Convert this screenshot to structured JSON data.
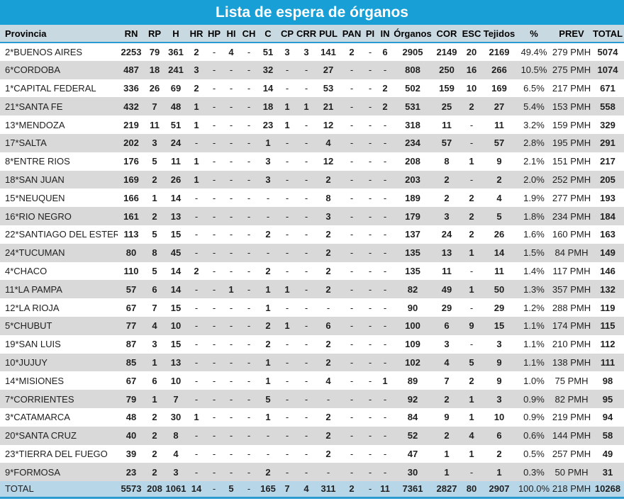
{
  "title": "Lista de espera de órganos",
  "colors": {
    "title_bar": "#18a0d6",
    "header_bg": "#c9d9e2",
    "row_alt_bg": "#d9d9d9",
    "total_row_bg": "#b7d7e9",
    "accent_border": "#2a9ad0",
    "text": "#1f1f1f",
    "title_text": "#ffffff"
  },
  "chart_data": {
    "type": "table",
    "title": "Lista de espera de órganos",
    "columns": [
      "Provincia",
      "RN",
      "RP",
      "H",
      "HR",
      "HP",
      "HI",
      "CH",
      "C",
      "CP",
      "CRR",
      "PUL",
      "PAN",
      "PI",
      "IN",
      "Órganos",
      "COR",
      "ESC",
      "Tejidos",
      "%",
      "PREV",
      "TOTAL"
    ],
    "rows": [
      [
        "2*BUENOS AIRES",
        "2253",
        "79",
        "361",
        "2",
        "-",
        "4",
        "-",
        "51",
        "3",
        "3",
        "141",
        "2",
        "-",
        "6",
        "2905",
        "2149",
        "20",
        "2169",
        "49.4%",
        "279 PMH",
        "5074"
      ],
      [
        "6*CORDOBA",
        "487",
        "18",
        "241",
        "3",
        "-",
        "-",
        "-",
        "32",
        "-",
        "-",
        "27",
        "-",
        "-",
        "-",
        "808",
        "250",
        "16",
        "266",
        "10.5%",
        "275 PMH",
        "1074"
      ],
      [
        "1*CAPITAL FEDERAL",
        "336",
        "26",
        "69",
        "2",
        "-",
        "-",
        "-",
        "14",
        "-",
        "-",
        "53",
        "-",
        "-",
        "2",
        "502",
        "159",
        "10",
        "169",
        "6.5%",
        "217 PMH",
        "671"
      ],
      [
        "21*SANTA FE",
        "432",
        "7",
        "48",
        "1",
        "-",
        "-",
        "-",
        "18",
        "1",
        "1",
        "21",
        "-",
        "-",
        "2",
        "531",
        "25",
        "2",
        "27",
        "5.4%",
        "153 PMH",
        "558"
      ],
      [
        "13*MENDOZA",
        "219",
        "11",
        "51",
        "1",
        "-",
        "-",
        "-",
        "23",
        "1",
        "-",
        "12",
        "-",
        "-",
        "-",
        "318",
        "11",
        "-",
        "11",
        "3.2%",
        "159 PMH",
        "329"
      ],
      [
        "17*SALTA",
        "202",
        "3",
        "24",
        "-",
        "-",
        "-",
        "-",
        "1",
        "-",
        "-",
        "4",
        "-",
        "-",
        "-",
        "234",
        "57",
        "-",
        "57",
        "2.8%",
        "195 PMH",
        "291"
      ],
      [
        "8*ENTRE RIOS",
        "176",
        "5",
        "11",
        "1",
        "-",
        "-",
        "-",
        "3",
        "-",
        "-",
        "12",
        "-",
        "-",
        "-",
        "208",
        "8",
        "1",
        "9",
        "2.1%",
        "151 PMH",
        "217"
      ],
      [
        "18*SAN JUAN",
        "169",
        "2",
        "26",
        "1",
        "-",
        "-",
        "-",
        "3",
        "-",
        "-",
        "2",
        "-",
        "-",
        "-",
        "203",
        "2",
        "-",
        "2",
        "2.0%",
        "252 PMH",
        "205"
      ],
      [
        "15*NEUQUEN",
        "166",
        "1",
        "14",
        "-",
        "-",
        "-",
        "-",
        "-",
        "-",
        "-",
        "8",
        "-",
        "-",
        "-",
        "189",
        "2",
        "2",
        "4",
        "1.9%",
        "277 PMH",
        "193"
      ],
      [
        "16*RIO NEGRO",
        "161",
        "2",
        "13",
        "-",
        "-",
        "-",
        "-",
        "-",
        "-",
        "-",
        "3",
        "-",
        "-",
        "-",
        "179",
        "3",
        "2",
        "5",
        "1.8%",
        "234 PMH",
        "184"
      ],
      [
        "22*SANTIAGO DEL ESTERO",
        "113",
        "5",
        "15",
        "-",
        "-",
        "-",
        "-",
        "2",
        "-",
        "-",
        "2",
        "-",
        "-",
        "-",
        "137",
        "24",
        "2",
        "26",
        "1.6%",
        "160 PMH",
        "163"
      ],
      [
        "24*TUCUMAN",
        "80",
        "8",
        "45",
        "-",
        "-",
        "-",
        "-",
        "-",
        "-",
        "-",
        "2",
        "-",
        "-",
        "-",
        "135",
        "13",
        "1",
        "14",
        "1.5%",
        "84 PMH",
        "149"
      ],
      [
        "4*CHACO",
        "110",
        "5",
        "14",
        "2",
        "-",
        "-",
        "-",
        "2",
        "-",
        "-",
        "2",
        "-",
        "-",
        "-",
        "135",
        "11",
        "-",
        "11",
        "1.4%",
        "117 PMH",
        "146"
      ],
      [
        "11*LA PAMPA",
        "57",
        "6",
        "14",
        "-",
        "-",
        "1",
        "-",
        "1",
        "1",
        "-",
        "2",
        "-",
        "-",
        "-",
        "82",
        "49",
        "1",
        "50",
        "1.3%",
        "357 PMH",
        "132"
      ],
      [
        "12*LA RIOJA",
        "67",
        "7",
        "15",
        "-",
        "-",
        "-",
        "-",
        "1",
        "-",
        "-",
        "-",
        "-",
        "-",
        "-",
        "90",
        "29",
        "-",
        "29",
        "1.2%",
        "288 PMH",
        "119"
      ],
      [
        "5*CHUBUT",
        "77",
        "4",
        "10",
        "-",
        "-",
        "-",
        "-",
        "2",
        "1",
        "-",
        "6",
        "-",
        "-",
        "-",
        "100",
        "6",
        "9",
        "15",
        "1.1%",
        "174 PMH",
        "115"
      ],
      [
        "19*SAN LUIS",
        "87",
        "3",
        "15",
        "-",
        "-",
        "-",
        "-",
        "2",
        "-",
        "-",
        "2",
        "-",
        "-",
        "-",
        "109",
        "3",
        "-",
        "3",
        "1.1%",
        "210 PMH",
        "112"
      ],
      [
        "10*JUJUY",
        "85",
        "1",
        "13",
        "-",
        "-",
        "-",
        "-",
        "1",
        "-",
        "-",
        "2",
        "-",
        "-",
        "-",
        "102",
        "4",
        "5",
        "9",
        "1.1%",
        "138 PMH",
        "111"
      ],
      [
        "14*MISIONES",
        "67",
        "6",
        "10",
        "-",
        "-",
        "-",
        "-",
        "1",
        "-",
        "-",
        "4",
        "-",
        "-",
        "1",
        "89",
        "7",
        "2",
        "9",
        "1.0%",
        "75 PMH",
        "98"
      ],
      [
        "7*CORRIENTES",
        "79",
        "1",
        "7",
        "-",
        "-",
        "-",
        "-",
        "5",
        "-",
        "-",
        "-",
        "-",
        "-",
        "-",
        "92",
        "2",
        "1",
        "3",
        "0.9%",
        "82 PMH",
        "95"
      ],
      [
        "3*CATAMARCA",
        "48",
        "2",
        "30",
        "1",
        "-",
        "-",
        "-",
        "1",
        "-",
        "-",
        "2",
        "-",
        "-",
        "-",
        "84",
        "9",
        "1",
        "10",
        "0.9%",
        "219 PMH",
        "94"
      ],
      [
        "20*SANTA CRUZ",
        "40",
        "2",
        "8",
        "-",
        "-",
        "-",
        "-",
        "-",
        "-",
        "-",
        "2",
        "-",
        "-",
        "-",
        "52",
        "2",
        "4",
        "6",
        "0.6%",
        "144 PMH",
        "58"
      ],
      [
        "23*TIERRA DEL FUEGO",
        "39",
        "2",
        "4",
        "-",
        "-",
        "-",
        "-",
        "-",
        "-",
        "-",
        "2",
        "-",
        "-",
        "-",
        "47",
        "1",
        "1",
        "2",
        "0.5%",
        "257 PMH",
        "49"
      ],
      [
        "9*FORMOSA",
        "23",
        "2",
        "3",
        "-",
        "-",
        "-",
        "-",
        "2",
        "-",
        "-",
        "-",
        "-",
        "-",
        "-",
        "30",
        "1",
        "-",
        "1",
        "0.3%",
        "50 PMH",
        "31"
      ]
    ],
    "total_row": [
      "TOTAL",
      "5573",
      "208",
      "1061",
      "14",
      "-",
      "5",
      "-",
      "165",
      "7",
      "4",
      "311",
      "2",
      "-",
      "11",
      "7361",
      "2827",
      "80",
      "2907",
      "100.0%",
      "218 PMH",
      "10268"
    ],
    "layout_hints": {
      "legend": "none",
      "grid": "banded-rows",
      "first_column_align": "left",
      "numeric_align": "center"
    }
  }
}
